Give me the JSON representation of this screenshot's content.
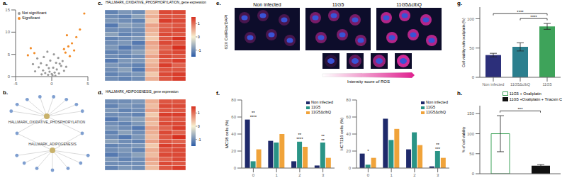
{
  "panel_labels": [
    "a.",
    "b.",
    "c.",
    "d.",
    "e.",
    "f.",
    "g.",
    "h."
  ],
  "network": {
    "hubs": [
      "HALLMARK_OXIDATIVE_PHOSPHORYLATION",
      "HALLMARK_ADIPOGENESIS"
    ],
    "genes": [
      {
        "links": [
          0
        ]
      },
      {
        "links": [
          0
        ]
      },
      {
        "links": [
          0
        ]
      },
      {
        "links": [
          0
        ]
      },
      {
        "links": [
          0
        ]
      },
      {
        "links": [
          0
        ]
      },
      {
        "links": [
          0
        ]
      },
      {
        "links": [
          0
        ]
      },
      {
        "links": [
          0,
          1
        ]
      },
      {
        "links": [
          0,
          1
        ]
      },
      {
        "links": [
          1
        ]
      },
      {
        "links": [
          1
        ]
      },
      {
        "links": [
          1
        ]
      },
      {
        "links": [
          1
        ]
      },
      {
        "links": [
          1
        ]
      },
      {
        "links": [
          1
        ]
      },
      {
        "links": [
          1
        ]
      }
    ]
  },
  "images": {
    "stain": "63X CellRox/DAPI",
    "conditions": [
      "Non infected",
      "11G5",
      "11G5ΔclbQ"
    ],
    "scale_label": "Intensity score of ROS"
  },
  "chart_data": [
    {
      "type": "scatter",
      "xlim": [
        -5,
        5
      ],
      "ylim": [
        0,
        15
      ],
      "xticks": [
        -5,
        0,
        5
      ],
      "yticks": [
        0,
        5,
        10,
        15
      ],
      "grid": false,
      "legend": "upper left",
      "series": [
        {
          "name": "Not significant",
          "color": "#9a9a9a",
          "x": [
            -1.8,
            -1.2,
            -0.9,
            -0.5,
            -0.3,
            0.1,
            0.4,
            0.7,
            1.0,
            1.3,
            -1.5,
            -0.7,
            0.2,
            0.6,
            -2.3,
            -2.6,
            1.7,
            -0.2,
            0.9,
            -1.1,
            0.3,
            -0.6,
            1.5,
            -2.0,
            0.0,
            -0.4,
            0.5,
            1.1,
            -1.4,
            2.0
          ],
          "values": [
            2.1,
            1.4,
            0.8,
            0.4,
            1.1,
            0.3,
            0.9,
            1.6,
            0.7,
            2.4,
            3.0,
            2.6,
            2.0,
            3.1,
            1.2,
            2.8,
            1.3,
            3.6,
            4.2,
            4.4,
            5.0,
            5.6,
            3.5,
            4.1,
            0.6,
            1.9,
            0.2,
            2.9,
            0.5,
            2.2
          ]
        },
        {
          "name": "Significant",
          "color": "#f28c28",
          "x": [
            1.9,
            2.3,
            2.8,
            3.4,
            3.9,
            4.5,
            2.5,
            3.1,
            -2.4,
            -2.9,
            -3.3,
            1.7,
            2.1
          ],
          "values": [
            5.4,
            6.8,
            7.5,
            8.9,
            10.6,
            14.2,
            4.6,
            5.9,
            5.3,
            6.4,
            4.8,
            6.2,
            9.3
          ]
        }
      ]
    },
    {
      "type": "heatmap",
      "title": "HALLMARK_OXIDATIVE_PHOSPHORYLATION_gene expression",
      "tick_labels": false,
      "colorbar": {
        "range": [
          -1.5,
          1.5
        ],
        "ticks": [
          -1,
          0,
          1
        ],
        "colors": [
          "#2c5ca8",
          "#f7efcf",
          "#d7301f"
        ]
      },
      "cells": [
        [
          -1.1,
          -0.9,
          -1.0,
          0.4,
          1.3,
          1.3
        ],
        [
          -1.0,
          -1.1,
          -0.8,
          0.5,
          1.2,
          1.2
        ],
        [
          -0.9,
          -1.0,
          -1.1,
          0.3,
          1.4,
          1.3
        ],
        [
          -1.2,
          -0.8,
          -0.9,
          0.6,
          1.1,
          1.2
        ],
        [
          -1.0,
          -1.0,
          -1.0,
          0.5,
          1.2,
          1.3
        ],
        [
          -0.8,
          -1.1,
          -1.0,
          0.4,
          1.3,
          1.2
        ],
        [
          -1.1,
          -1.0,
          -0.9,
          0.3,
          1.2,
          1.5
        ],
        [
          -1.0,
          -0.9,
          -1.2,
          0.6,
          1.3,
          1.2
        ],
        [
          -0.9,
          -1.2,
          -1.0,
          0.5,
          1.1,
          1.5
        ],
        [
          -1.1,
          -1.0,
          -0.8,
          0.4,
          1.2,
          1.3
        ],
        [
          -1.0,
          -1.1,
          -1.0,
          0.6,
          1.3,
          1.2
        ],
        [
          -1.2,
          -0.9,
          -0.9,
          0.4,
          1.2,
          1.4
        ],
        [
          -0.9,
          -1.0,
          -1.1,
          0.5,
          1.4,
          1.1
        ],
        [
          -1.0,
          -0.8,
          -1.2,
          0.6,
          1.2,
          1.2
        ],
        [
          -1.1,
          -1.0,
          -0.9,
          0.3,
          1.3,
          1.4
        ],
        [
          -1.0,
          -1.1,
          -1.0,
          0.5,
          1.2,
          1.4
        ]
      ]
    },
    {
      "type": "heatmap",
      "title": "HALLMARK_ADIPOGENESIS_gene expression",
      "tick_labels": false,
      "colorbar": {
        "range": [
          -1.5,
          1.5
        ],
        "ticks": [
          -1,
          0,
          1
        ],
        "colors": [
          "#2c5ca8",
          "#f7efcf",
          "#d7301f"
        ]
      },
      "cells": [
        [
          -1.0,
          -1.0,
          -0.9,
          0.5,
          1.2,
          1.2
        ],
        [
          -1.1,
          -0.9,
          -1.0,
          0.4,
          1.3,
          1.3
        ],
        [
          -0.9,
          -1.1,
          -1.0,
          0.6,
          1.2,
          1.2
        ],
        [
          -1.0,
          -1.0,
          -1.1,
          0.3,
          1.4,
          1.4
        ],
        [
          -1.2,
          -0.9,
          -0.8,
          0.5,
          1.2,
          1.2
        ],
        [
          -1.0,
          -1.1,
          -0.9,
          0.4,
          1.3,
          1.3
        ],
        [
          -0.9,
          -1.0,
          -1.2,
          0.6,
          1.1,
          1.4
        ],
        [
          -1.1,
          -0.8,
          -1.0,
          0.5,
          1.3,
          1.1
        ],
        [
          -1.0,
          -1.2,
          -0.9,
          0.4,
          1.2,
          1.5
        ],
        [
          -0.8,
          -1.0,
          -1.1,
          0.6,
          1.2,
          1.1
        ],
        [
          -1.1,
          -1.0,
          -0.9,
          0.3,
          1.4,
          1.3
        ],
        [
          -1.0,
          -0.9,
          -1.1,
          0.5,
          1.2,
          1.3
        ],
        [
          -1.2,
          -1.0,
          -0.8,
          0.4,
          1.3,
          1.3
        ],
        [
          -0.9,
          -1.1,
          -1.0,
          0.6,
          1.1,
          1.3
        ],
        [
          -1.0,
          -1.0,
          -1.0,
          0.5,
          1.3,
          1.2
        ],
        [
          -1.1,
          -0.9,
          -1.0,
          0.4,
          1.2,
          1.4
        ]
      ]
    },
    {
      "type": "bar",
      "categories": [
        "0",
        "1",
        "2",
        "3"
      ],
      "y_label": "MC38 cells (%)",
      "ylim": [
        0,
        80
      ],
      "yticks": [
        0,
        20,
        40,
        60,
        80
      ],
      "grid": false,
      "legend": "upper right",
      "series": [
        {
          "name": "Non infected",
          "color": "#1f2a6b",
          "values": [
            57,
            32,
            8,
            3
          ]
        },
        {
          "name": "11G5",
          "color": "#2a9486",
          "values": [
            8,
            30,
            31,
            30
          ]
        },
        {
          "name": "11G5ΔclbQ",
          "color": "#f0a33a",
          "values": [
            22,
            40,
            25,
            12
          ]
        }
      ],
      "annotations": [
        {
          "category": "0",
          "text": "****"
        },
        {
          "category": "0",
          "text": "**"
        },
        {
          "category": "2",
          "text": "****"
        },
        {
          "category": "2",
          "text": "**"
        },
        {
          "category": "3",
          "text": "**"
        },
        {
          "category": "3",
          "text": "**"
        }
      ]
    },
    {
      "type": "bar",
      "categories": [
        "0",
        "1",
        "2",
        "3"
      ],
      "y_label": "HCT116 cells (%)",
      "ylim": [
        0,
        80
      ],
      "yticks": [
        0,
        20,
        40,
        60,
        80
      ],
      "grid": false,
      "legend": "upper right",
      "series": [
        {
          "name": "Non infected",
          "color": "#1f2a6b",
          "values": [
            17,
            58,
            22,
            2
          ]
        },
        {
          "name": "11G5",
          "color": "#2a9486",
          "values": [
            4,
            33,
            42,
            20
          ]
        },
        {
          "name": "11G5ΔclbQ",
          "color": "#f0a33a",
          "values": [
            12,
            46,
            27,
            12
          ]
        }
      ],
      "annotations": [
        {
          "category": "0",
          "text": "*"
        },
        {
          "category": "3",
          "text": "***"
        },
        {
          "category": "3",
          "text": "**"
        }
      ]
    },
    {
      "type": "bar",
      "categories": [
        "Non infected",
        "11G5ΔclbQ",
        "11G5"
      ],
      "values": [
        38,
        52,
        87
      ],
      "errors": [
        3,
        7,
        5
      ],
      "colors": [
        "#2c2f7a",
        "#2b7f8e",
        "#3ea35a"
      ],
      "y_label": "Cell viability with oxaliplatin (%)",
      "ylim": [
        0,
        120
      ],
      "yticks": [
        0,
        50,
        100
      ],
      "grid": false,
      "annotations": [
        {
          "between": [
            "11G5ΔclbQ",
            "11G5"
          ],
          "text": "****"
        },
        {
          "between": [
            "Non infected",
            "11G5"
          ],
          "text": "****"
        }
      ]
    },
    {
      "type": "bar",
      "categories": [
        "11G5 + Oxaliplatin",
        "11G5 +Oxaliplatin + Triacsin C"
      ],
      "values": [
        100,
        20
      ],
      "errors": [
        45,
        3
      ],
      "colors": [
        "#ffffff",
        "#111111"
      ],
      "y_label": "% of cell viability",
      "ylim": [
        0,
        170
      ],
      "yticks": [
        0,
        50,
        100,
        150
      ],
      "grid": false,
      "tick_labels": "y",
      "legend": "upper right",
      "annotations": [
        {
          "between": [
            "11G5 + Oxaliplatin",
            "11G5 +Oxaliplatin + Triacsin C"
          ],
          "text": "***"
        }
      ]
    }
  ]
}
